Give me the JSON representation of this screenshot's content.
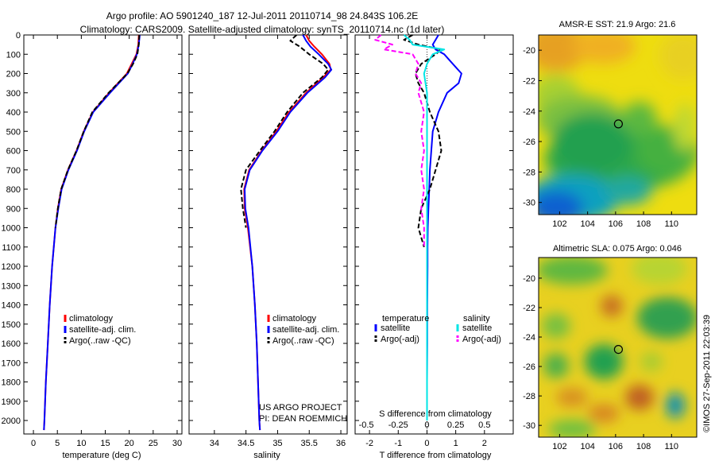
{
  "header": {
    "line1": "Argo profile: AO 5901240_187 12-Jul-2011 20110714_98 24.843S 106.2E",
    "line2": "Climatology: CARS2009. Satellite-adjusted climatology: synTS_20110714.nc (1d later)"
  },
  "footer_stamp": "©IMOS 27-Sep-2011 22:03:39",
  "project_note": {
    "line1": "US ARGO PROJECT",
    "line2": "PI: DEAN ROEMMICH"
  },
  "colors": {
    "climatology": "#ff0000",
    "satellite": "#0000ff",
    "argo": "#000000",
    "salinity_satellite": "#00e5e5",
    "salinity_argo": "#ff00ff"
  },
  "chart_data": [
    {
      "type": "line",
      "id": "temperature",
      "xlabel": "temperature (deg C)",
      "ylabel": "",
      "xlim": [
        -2,
        31
      ],
      "ylim": [
        2070,
        0
      ],
      "x_ticks": [
        0,
        5,
        10,
        15,
        20,
        25,
        30
      ],
      "y_ticks": [
        0,
        100,
        200,
        300,
        400,
        500,
        600,
        700,
        800,
        900,
        1000,
        1100,
        1200,
        1300,
        1400,
        1500,
        1600,
        1700,
        1800,
        1900,
        2000
      ],
      "legend": [
        "climatology",
        "satellite-adj. clim.",
        "Argo(..raw -QC)"
      ],
      "legend_position": "bottom-left",
      "depth": [
        0,
        50,
        100,
        150,
        200,
        300,
        400,
        500,
        600,
        700,
        800,
        900,
        1000,
        1200,
        1400,
        1600,
        1800,
        2000,
        2050
      ],
      "series": [
        {
          "name": "climatology",
          "values": [
            22.0,
            21.9,
            21.5,
            20.5,
            19.5,
            15.8,
            12.4,
            10.5,
            9.0,
            7.2,
            5.8,
            5.1,
            4.6,
            3.9,
            3.4,
            3.0,
            2.6,
            2.3,
            2.2
          ]
        },
        {
          "name": "satellite-adj. clim.",
          "values": [
            22.2,
            22.0,
            21.6,
            20.7,
            19.7,
            16.0,
            12.5,
            10.6,
            9.1,
            7.3,
            5.9,
            5.2,
            4.6,
            3.9,
            3.4,
            3.0,
            2.6,
            2.3,
            2.2
          ]
        },
        {
          "name": "Argo(..raw -QC)",
          "values": [
            22.1,
            22.0,
            21.7,
            20.8,
            19.6,
            15.7,
            12.3,
            10.5,
            9.0,
            7.2,
            5.8,
            5.1,
            4.6
          ]
        }
      ]
    },
    {
      "type": "line",
      "id": "salinity",
      "xlabel": "salinity",
      "ylabel": "",
      "xlim": [
        33.6,
        36.1
      ],
      "ylim": [
        2070,
        0
      ],
      "x_ticks": [
        34,
        34.5,
        35,
        35.5,
        36
      ],
      "legend": [
        "climatology",
        "satellite-adj. clim.",
        "Argo(..raw -QC)"
      ],
      "legend_position": "bottom-left",
      "depth": [
        0,
        30,
        60,
        100,
        150,
        180,
        220,
        300,
        400,
        500,
        600,
        700,
        800,
        900,
        1000,
        1200,
        1400,
        1600,
        1800,
        2000,
        2050
      ],
      "series": [
        {
          "name": "climatology",
          "values": [
            35.45,
            35.5,
            35.58,
            35.7,
            35.82,
            35.84,
            35.72,
            35.45,
            35.18,
            34.98,
            34.75,
            34.55,
            34.47,
            34.48,
            34.53,
            34.6,
            34.64,
            34.67,
            34.69,
            34.71,
            34.72
          ]
        },
        {
          "name": "satellite-adj. clim.",
          "values": [
            35.4,
            35.45,
            35.52,
            35.65,
            35.8,
            35.85,
            35.75,
            35.47,
            35.2,
            35.0,
            34.76,
            34.56,
            34.48,
            34.49,
            34.54,
            34.6,
            34.64,
            34.67,
            34.69,
            34.71,
            34.72
          ]
        },
        {
          "name": "Argo(..raw -QC)",
          "values": [
            35.3,
            35.2,
            35.35,
            35.5,
            35.72,
            35.8,
            35.7,
            35.4,
            35.15,
            34.95,
            34.72,
            34.5,
            34.42,
            34.45,
            34.5
          ]
        }
      ]
    },
    {
      "type": "line",
      "id": "difference",
      "xlabel": "T difference from climatology",
      "title_bottom": "S difference from climatology",
      "xlim": [
        -2.5,
        3.0
      ],
      "ylim": [
        2070,
        0
      ],
      "x_ticks": [
        -2,
        -1,
        0,
        1,
        2
      ],
      "top_scale_ticks": [
        "-0.5",
        "-0.25",
        "0",
        "0.25",
        "0.5"
      ],
      "legend_headers": [
        "temperature",
        "salinity"
      ],
      "legend": [
        "satellite",
        "Argo(-adj)",
        "satellite",
        "Argo(-adj)"
      ],
      "legend_position": "bottom",
      "depth": [
        0,
        25,
        50,
        75,
        100,
        150,
        200,
        250,
        300,
        400,
        500,
        600,
        700,
        800,
        900,
        1000,
        1100,
        1200,
        1400,
        1600,
        1800,
        2000
      ],
      "series": [
        {
          "name": "temperature satellite",
          "values": [
            0.4,
            0.3,
            0.2,
            0.3,
            0.6,
            0.9,
            1.2,
            1.1,
            0.7,
            0.4,
            0.2,
            0.15,
            0.1,
            0.08,
            0.05,
            0.03,
            0.02,
            0.02,
            0.01,
            0.01,
            0.0,
            0.0
          ]
        },
        {
          "name": "temperature Argo(-adj)",
          "values": [
            -0.5,
            -0.8,
            -0.3,
            0.5,
            0.3,
            -0.2,
            -0.4,
            -0.3,
            -0.1,
            0.1,
            0.4,
            0.5,
            0.3,
            0.1,
            -0.2,
            -0.3,
            -0.1
          ]
        },
        {
          "name": "salinity satellite",
          "values": [
            -0.8,
            -0.6,
            -0.5,
            0.6,
            0.2,
            0.0,
            -0.1,
            -0.05,
            0.0,
            0.0,
            0.0,
            0.0,
            0.0,
            0.0,
            0.0,
            0.0,
            0.0,
            0.0,
            0.0,
            0.0,
            0.0,
            0.0
          ]
        },
        {
          "name": "salinity Argo(-adj)",
          "values": [
            -1.6,
            -1.8,
            -1.2,
            -1.5,
            -0.5,
            -0.3,
            -0.4,
            -0.2,
            -0.3,
            -0.1,
            -0.2,
            -0.1,
            -0.2,
            -0.1,
            -0.2,
            -0.1,
            -0.1
          ]
        }
      ]
    },
    {
      "type": "heatmap",
      "id": "sst-map",
      "title": "AMSR-E SST: 21.9 Argo: 21.6",
      "xlim": [
        100.5,
        111.8
      ],
      "ylim": [
        -30.8,
        -19.0
      ],
      "x_ticks": [
        102,
        104,
        106,
        108,
        110
      ],
      "y_ticks": [
        -20,
        -22,
        -24,
        -26,
        -28,
        -30
      ],
      "marker": {
        "lon": 106.2,
        "lat": -24.843
      }
    },
    {
      "type": "heatmap",
      "id": "sla-map",
      "title": "Altimetric SLA: 0.075 Argo: 0.046",
      "xlim": [
        100.5,
        111.8
      ],
      "ylim": [
        -30.8,
        -18.6
      ],
      "x_ticks": [
        102,
        104,
        106,
        108,
        110
      ],
      "y_ticks": [
        -20,
        -22,
        -24,
        -26,
        -28,
        -30
      ],
      "marker": {
        "lon": 106.2,
        "lat": -24.843
      }
    }
  ]
}
